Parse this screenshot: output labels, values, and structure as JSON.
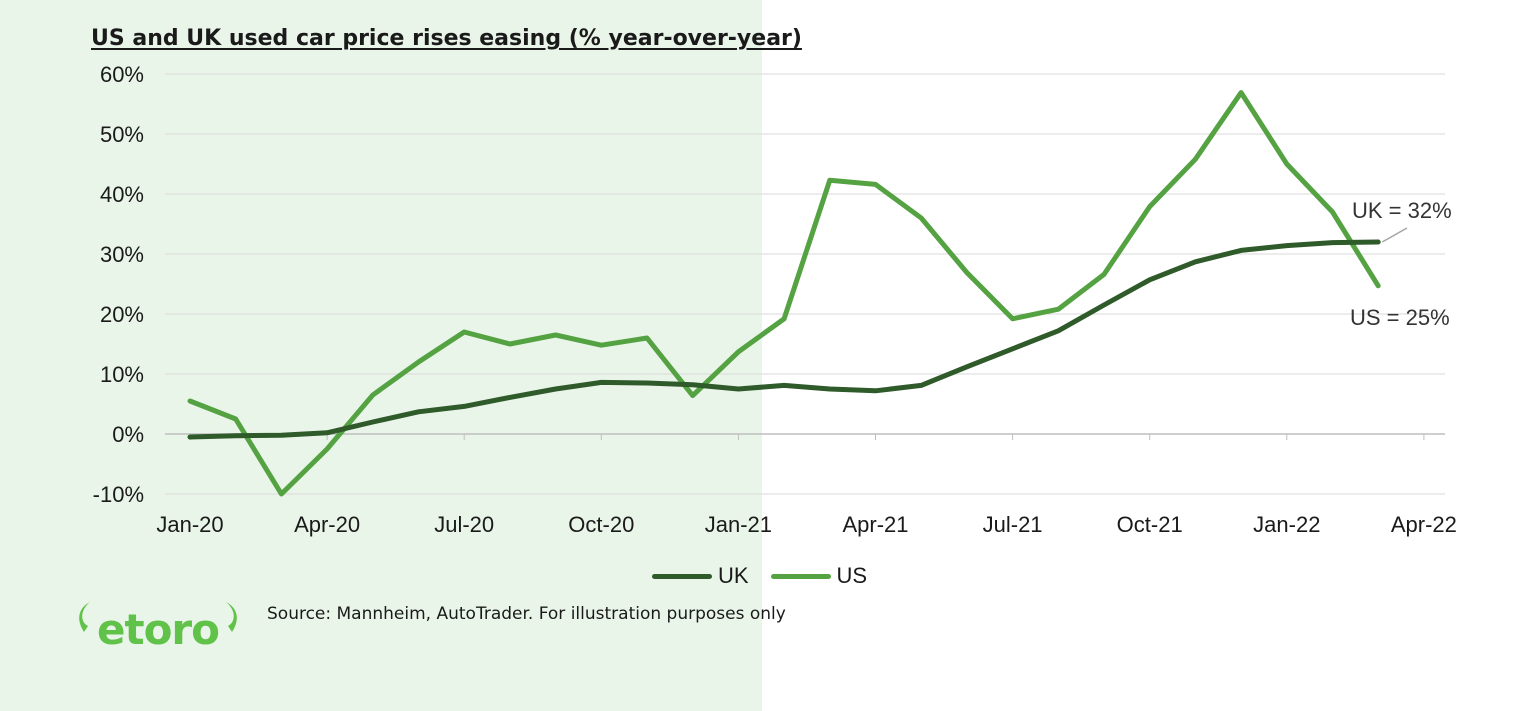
{
  "chart_data": {
    "type": "line",
    "title": "US and UK used car price rises easing (% year-over-year)",
    "xlabel": "",
    "ylabel": "",
    "x": [
      "Jan-20",
      "Feb-20",
      "Mar-20",
      "Apr-20",
      "May-20",
      "Jun-20",
      "Jul-20",
      "Aug-20",
      "Sep-20",
      "Oct-20",
      "Nov-20",
      "Dec-20",
      "Jan-21",
      "Feb-21",
      "Mar-21",
      "Apr-21",
      "May-21",
      "Jun-21",
      "Jul-21",
      "Aug-21",
      "Sep-21",
      "Oct-21",
      "Nov-21",
      "Dec-21",
      "Jan-22",
      "Feb-22",
      "Mar-22"
    ],
    "x_tick_labels": [
      "Jan-20",
      "Apr-20",
      "Jul-20",
      "Oct-20",
      "Jan-21",
      "Apr-21",
      "Jul-21",
      "Oct-21",
      "Jan-22",
      "Apr-22"
    ],
    "y_tick_labels": [
      "60%",
      "50%",
      "40%",
      "30%",
      "20%",
      "10%",
      "0%",
      "-10%"
    ],
    "ylim": [
      -10,
      60
    ],
    "grid": true,
    "legend_position": "bottom",
    "series": [
      {
        "name": "UK",
        "color": "#2f5a2a",
        "values": [
          -0.5,
          -0.3,
          -0.2,
          0.2,
          2.0,
          3.7,
          4.6,
          6.1,
          7.5,
          8.6,
          8.5,
          8.2,
          7.5,
          8.1,
          7.5,
          7.2,
          8.1,
          11.2,
          14.2,
          17.2,
          21.5,
          25.7,
          28.7,
          30.6,
          31.4,
          31.9,
          32.0
        ]
      },
      {
        "name": "US",
        "color": "#54a241",
        "values": [
          5.5,
          2.5,
          -10.0,
          -2.5,
          6.5,
          12.0,
          17.0,
          15.0,
          16.5,
          14.8,
          16.0,
          6.4,
          13.7,
          19.2,
          42.3,
          41.6,
          36.0,
          26.9,
          19.2,
          20.8,
          26.6,
          37.9,
          45.8,
          56.9,
          45.0,
          37.0,
          24.7
        ]
      }
    ],
    "annotations": [
      {
        "text": "UK = 32%",
        "series": "UK"
      },
      {
        "text": "US = 25%",
        "series": "US"
      }
    ]
  },
  "source_text": "Source: Mannheim, AutoTrader. For illustration purposes only",
  "logo": {
    "brand": "eToro",
    "color": "#61c24a"
  },
  "colors": {
    "shaded_region": "#eaf5ea",
    "gridline": "#d9d9d9"
  }
}
